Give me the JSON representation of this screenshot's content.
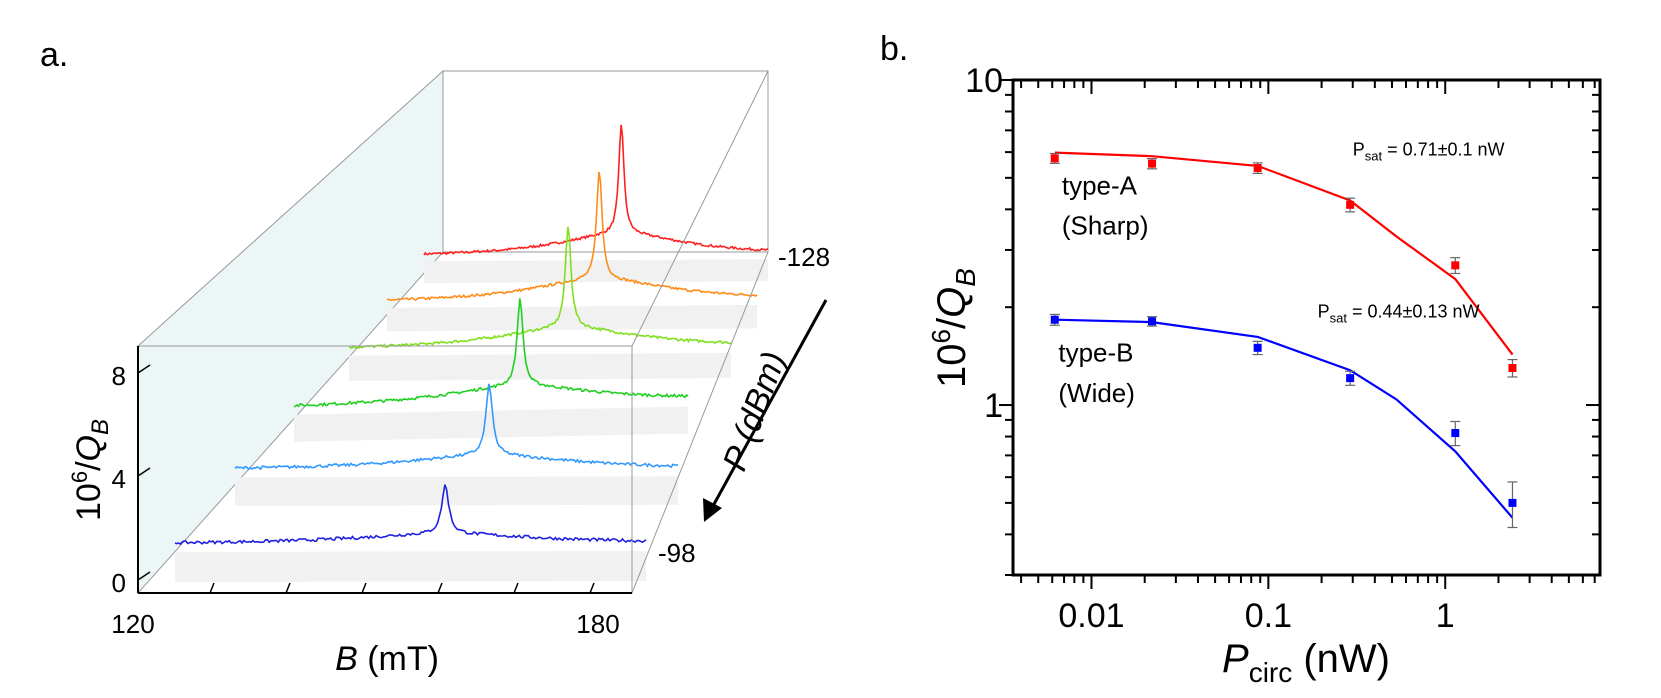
{
  "chart_data": [
    {
      "panel": "a.",
      "type": "line",
      "subtype": "waterfall-3d",
      "xlabel": {
        "var": "B",
        "unit": " (mT)"
      },
      "ylabel": {
        "base": "10",
        "exp": "6",
        "slash": "/",
        "var": "Q",
        "sub": "B"
      },
      "zlabel": {
        "var": "P",
        "unit": " (dBm)"
      },
      "x_ticks": [
        "120",
        "180"
      ],
      "xlim": [
        120,
        180
      ],
      "y_ticks": [
        "0",
        "4",
        "8"
      ],
      "ylim": [
        0,
        9
      ],
      "z_ticks": [
        "-128",
        "-98"
      ],
      "series": [
        {
          "color": "#ff2020",
          "b_range": [
            125,
            186
          ],
          "peak_B": 160,
          "background": 1.3,
          "peak_height": 7.1
        },
        {
          "color": "#ff8c1a",
          "b_range": [
            125,
            186
          ],
          "peak_B": 160,
          "background": 1.3,
          "peak_height": 6.6
        },
        {
          "color": "#80e020",
          "b_range": [
            125,
            186
          ],
          "peak_B": 160,
          "background": 1.4,
          "peak_height": 5.7
        },
        {
          "color": "#20d020",
          "b_range": [
            125,
            186
          ],
          "peak_B": 160,
          "background": 1.4,
          "peak_height": 4.6
        },
        {
          "color": "#3399ff",
          "b_range": [
            125,
            186
          ],
          "peak_B": 160,
          "background": 1.5,
          "peak_height": 3.5
        },
        {
          "color": "#2020e0",
          "b_range": [
            125,
            186
          ],
          "peak_B": 160,
          "background": 1.5,
          "peak_height": 2.3
        }
      ]
    },
    {
      "panel": "b.",
      "type": "scatter",
      "xscale": "log",
      "yscale": "log",
      "xlabel": {
        "var": "P",
        "sub": "circ",
        "unit": " (nW)"
      },
      "ylabel": {
        "base": "10",
        "exp": "6",
        "slash": "/",
        "var": "Q",
        "sub": "B"
      },
      "xlim": [
        0.0036,
        7.5
      ],
      "ylim": [
        0.3,
        10
      ],
      "x_ticks": [
        {
          "value": 0.01,
          "label": "0.01"
        },
        {
          "value": 0.1,
          "label": "0.1"
        },
        {
          "value": 1,
          "label": "1"
        }
      ],
      "y_ticks": [
        {
          "value": 1,
          "label": "1"
        },
        {
          "value": 10,
          "label": "10"
        }
      ],
      "series": [
        {
          "name": "type-A",
          "name2": "(Sharp)",
          "color": "#ff0000",
          "x": [
            0.0062,
            0.022,
            0.087,
            0.29,
            1.14,
            2.4
          ],
          "y": [
            5.74,
            5.53,
            5.36,
            4.13,
            2.69,
            1.3
          ],
          "err": [
            0.2,
            0.2,
            0.2,
            0.2,
            0.15,
            0.08
          ],
          "fit_x": [
            0.0062,
            0.022,
            0.087,
            0.29,
            0.53,
            1.14,
            2.4
          ],
          "fit_y": [
            5.98,
            5.83,
            5.44,
            4.26,
            3.3,
            2.44,
            1.43
          ],
          "psat": {
            "label": "P",
            "sub": "sat",
            "value": " = 0.71±0.1  nW"
          },
          "label_pos": {
            "x": 0.0068,
            "y1": 4.45,
            "y2": 3.35
          },
          "psat_pos": {
            "x": 0.3,
            "y": 5.85
          }
        },
        {
          "name": "type-B",
          "name2": "(Wide)",
          "color": "#0000ff",
          "x": [
            0.0062,
            0.022,
            0.087,
            0.29,
            1.14,
            2.4
          ],
          "y": [
            1.83,
            1.81,
            1.5,
            1.21,
            0.82,
            0.5
          ],
          "err": [
            0.07,
            0.06,
            0.07,
            0.06,
            0.07,
            0.08
          ],
          "fit_x": [
            0.0062,
            0.022,
            0.087,
            0.29,
            0.53,
            1.14,
            2.4
          ],
          "fit_y": [
            1.83,
            1.8,
            1.62,
            1.28,
            1.04,
            0.72,
            0.45
          ],
          "psat": {
            "label": "P",
            "sub": "sat",
            "value": " = 0.44±0.13  nW"
          },
          "label_pos": {
            "x": 0.0065,
            "y1": 1.36,
            "y2": 1.02
          },
          "psat_pos": {
            "x": 0.19,
            "y": 1.86
          }
        }
      ]
    }
  ]
}
